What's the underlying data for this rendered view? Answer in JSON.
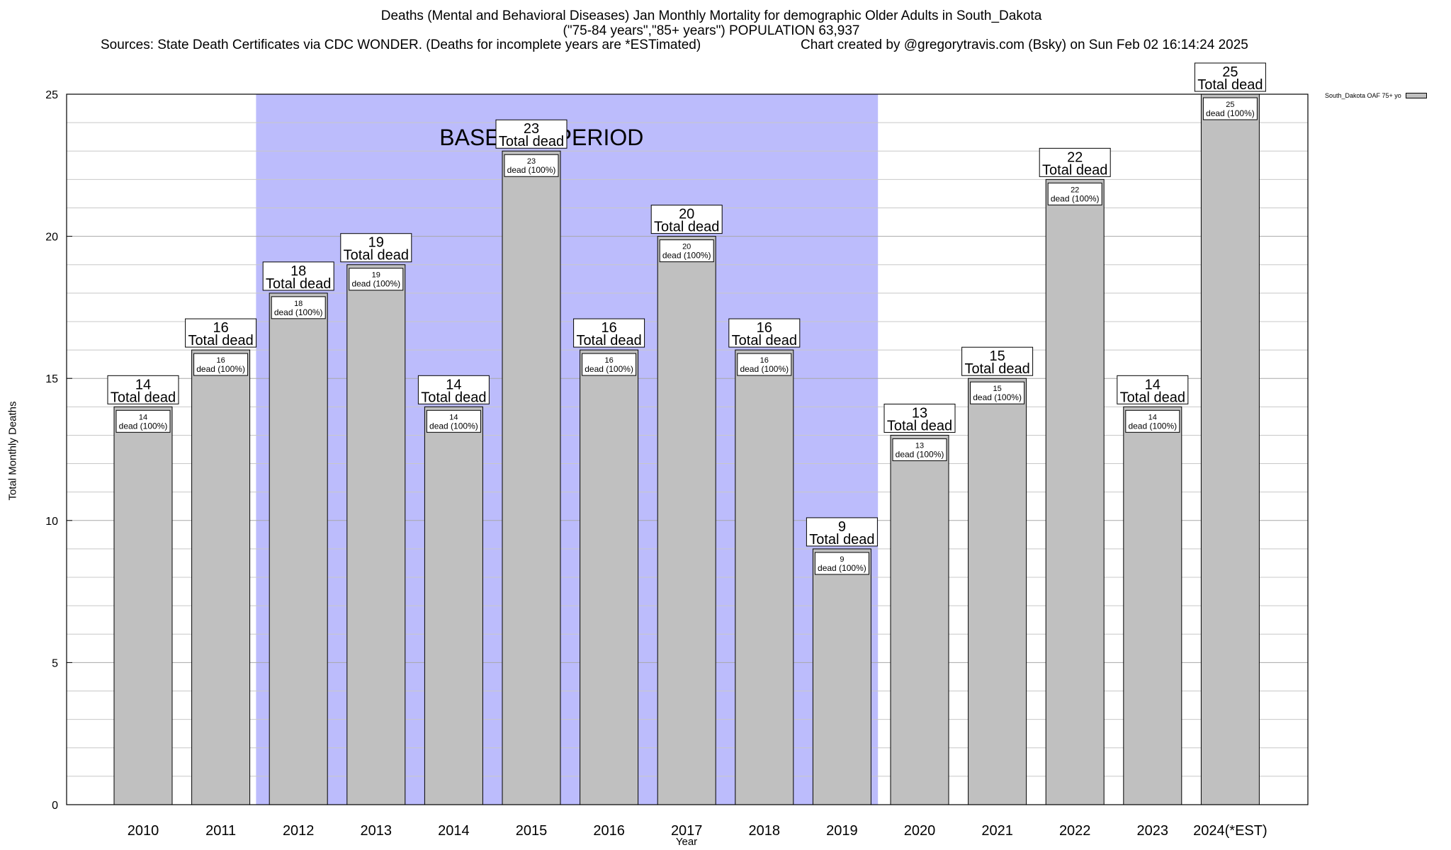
{
  "header": {
    "title": "Deaths (Mental and Behavioral Diseases) Jan Monthly Mortality for demographic Older Adults in South_Dakota",
    "subtitle": "(\"75-84 years\",\"85+ years\") POPULATION 63,937",
    "sources": "Sources: State Death Certificates via CDC WONDER. (Deaths for incomplete years are *ESTimated)",
    "credit": "Chart created by @gregorytravis.com (Bsky) on Sun Feb 02 16:14:24 2025"
  },
  "chart_data": {
    "type": "bar",
    "categories": [
      "2010",
      "2011",
      "2012",
      "2013",
      "2014",
      "2015",
      "2016",
      "2017",
      "2018",
      "2019",
      "2020",
      "2021",
      "2022",
      "2023",
      "2024(*EST)"
    ],
    "series": [
      {
        "name": "South_Dakota OAF 75+ yo",
        "values": [
          14,
          16,
          18,
          19,
          14,
          23,
          16,
          20,
          16,
          9,
          13,
          15,
          22,
          14,
          25
        ],
        "color": "#c0c0c0"
      }
    ],
    "top_label_text": "Total dead",
    "inner_label_text": "dead (100%)",
    "xlabel": "Year",
    "ylabel": "Total Monthly Deaths",
    "ylim": [
      0,
      25
    ],
    "yticks": [
      0,
      5,
      10,
      15,
      20,
      25
    ],
    "minor_grid_step": 1,
    "grid": true,
    "legend_position": "top-right",
    "baseline_period": {
      "label": "BASELINE PERIOD",
      "start": "2012",
      "end": "2019",
      "color": "#bcbcfc"
    }
  }
}
